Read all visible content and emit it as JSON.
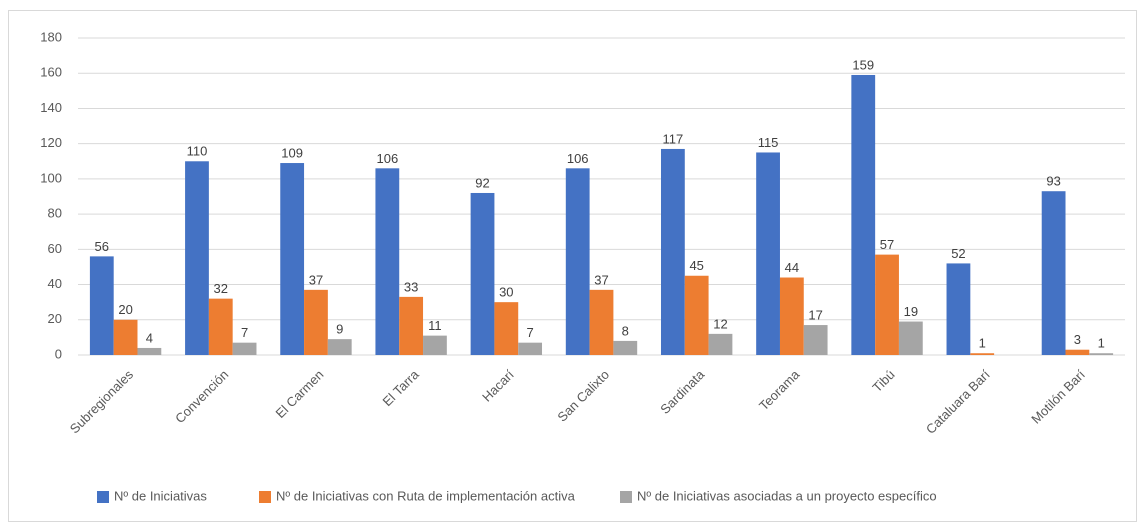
{
  "chart_data": {
    "type": "bar",
    "categories": [
      "Subregionales",
      "Convención",
      "El Carmen",
      "El Tarra",
      "Hacarí",
      "San Calixto",
      "Sardinata",
      "Teorama",
      "Tibú",
      "Cataluara Barí",
      "Motilón Barí"
    ],
    "series": [
      {
        "name": "Nº de Iniciativas",
        "color": "#4472c4",
        "values": [
          56,
          110,
          109,
          106,
          92,
          106,
          117,
          115,
          159,
          52,
          93
        ]
      },
      {
        "name": "Nº de Iniciativas con Ruta de implementación activa",
        "color": "#ed7d31",
        "values": [
          20,
          32,
          37,
          33,
          30,
          37,
          45,
          44,
          57,
          1,
          3
        ]
      },
      {
        "name": "Nº de Iniciativas asociadas a un proyecto específico",
        "color": "#a5a5a5",
        "values": [
          4,
          7,
          9,
          11,
          7,
          8,
          12,
          17,
          19,
          null,
          1
        ]
      }
    ],
    "ylim": [
      0,
      180
    ],
    "yticks": [
      0,
      20,
      40,
      60,
      80,
      100,
      120,
      140,
      160,
      180
    ],
    "grid": true,
    "legend": "bottom"
  }
}
